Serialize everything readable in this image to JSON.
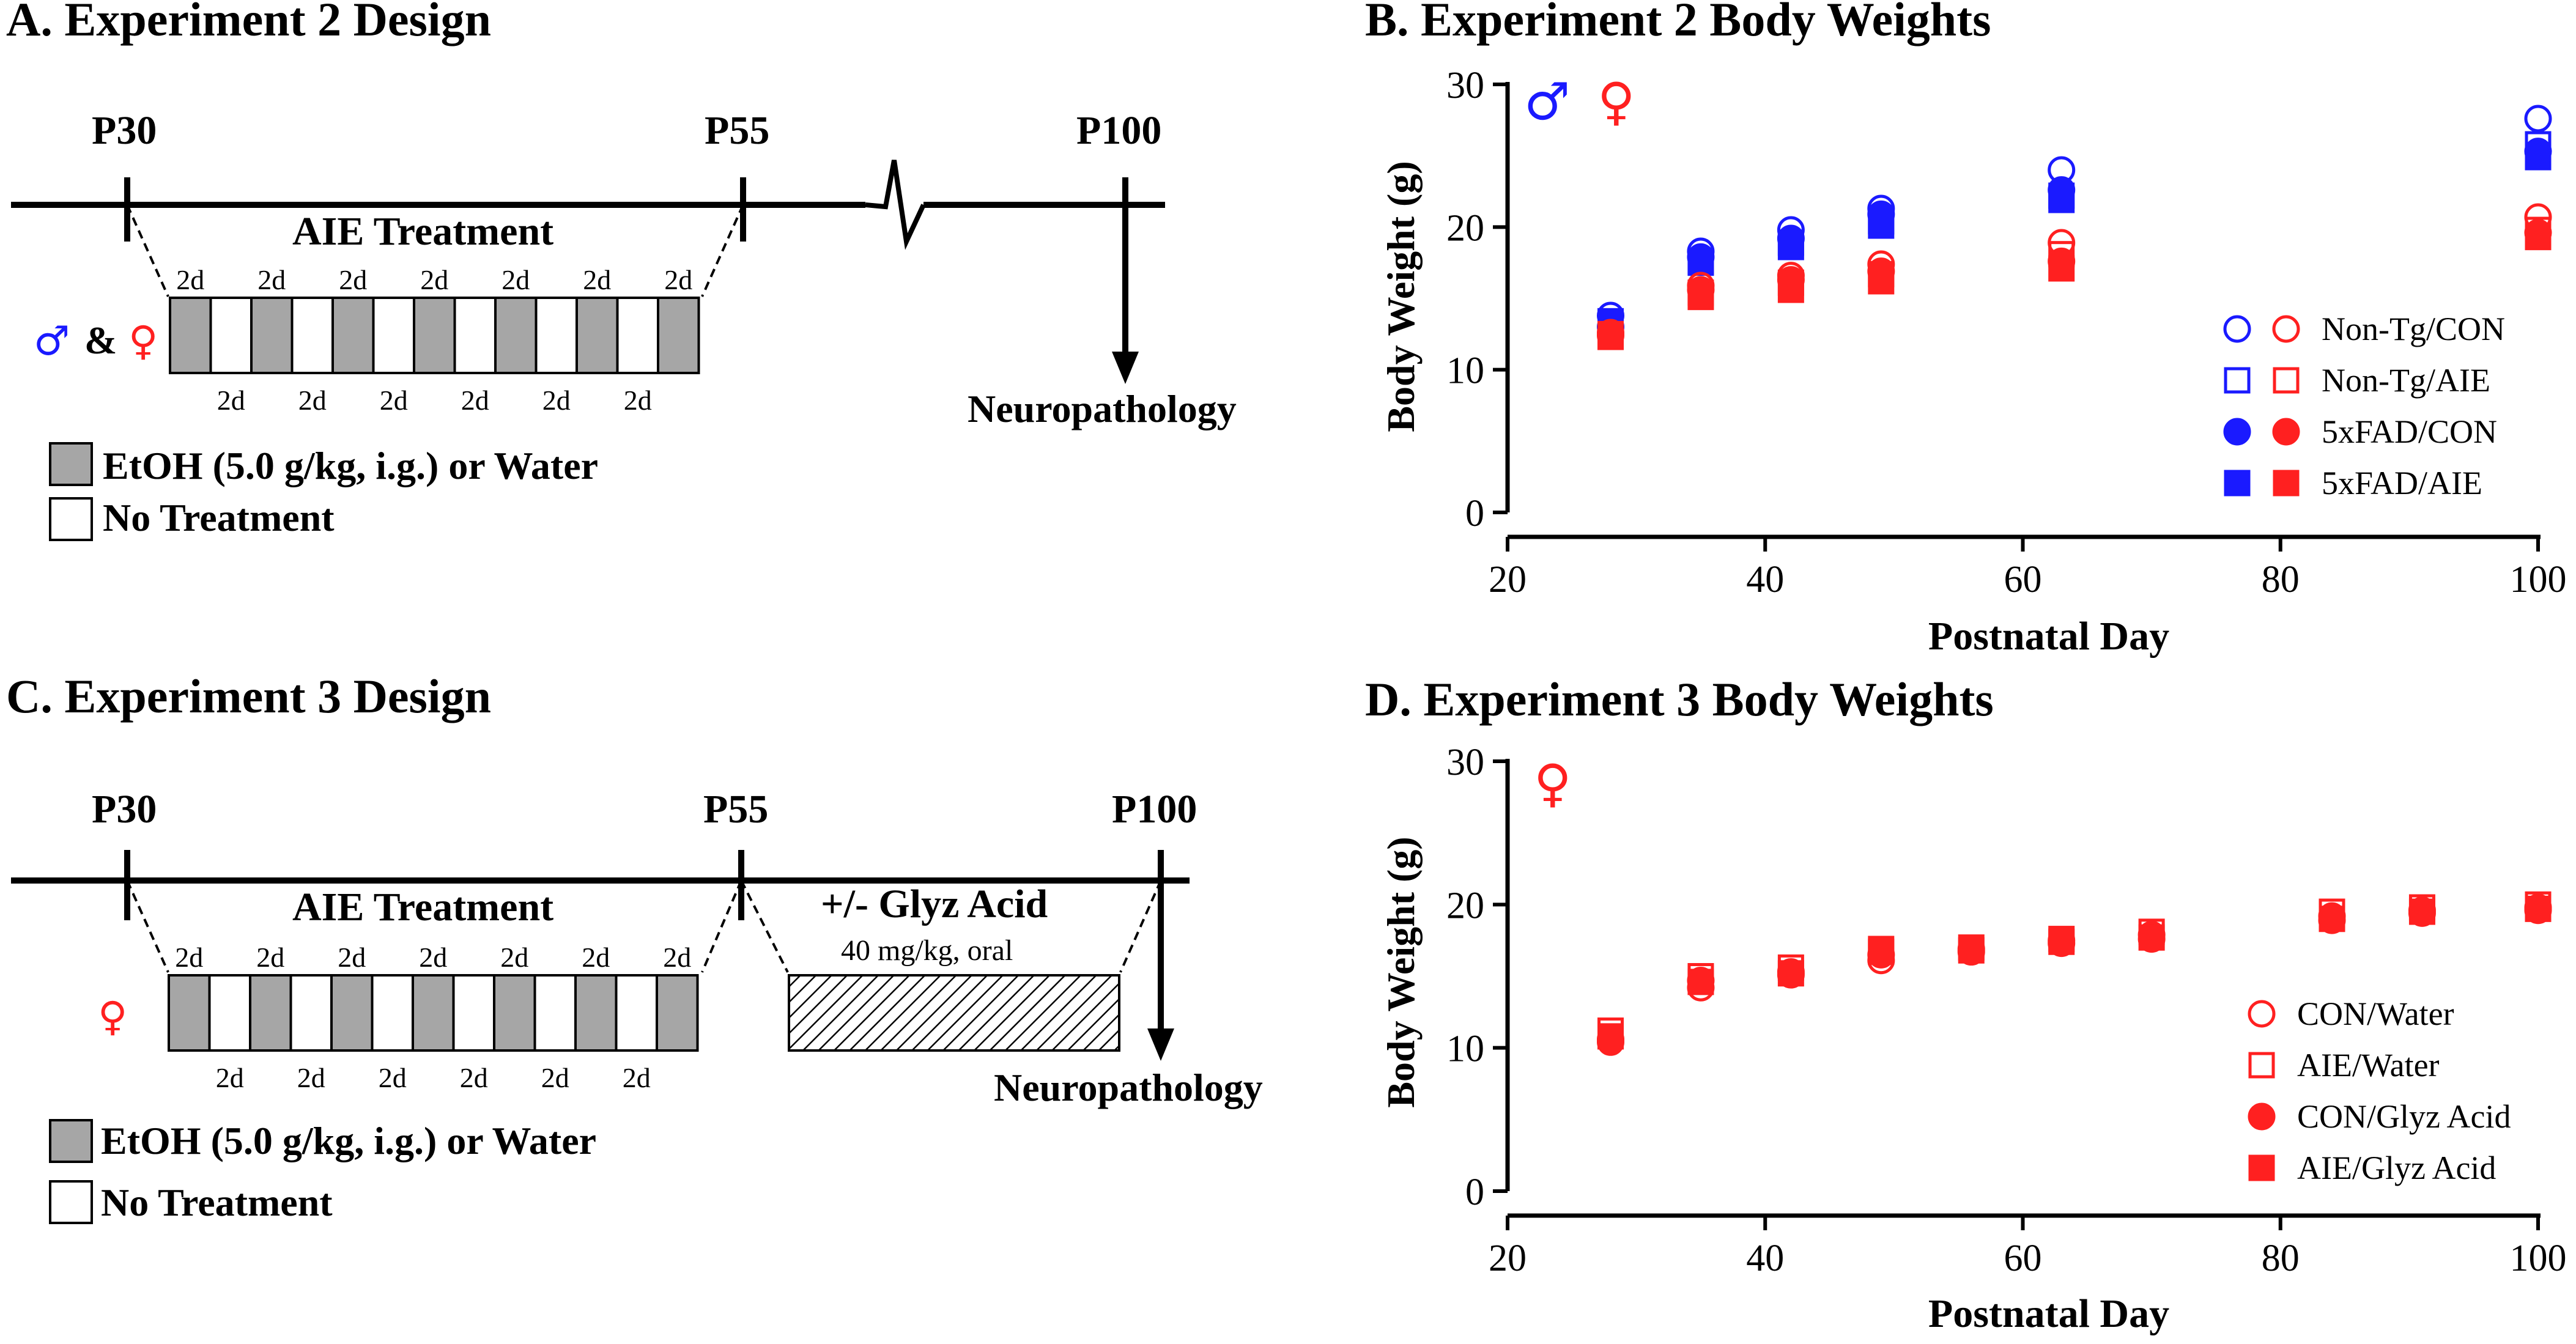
{
  "panels": {
    "a": {
      "title": "A. Experiment 2 Design",
      "timepoints": [
        "P30",
        "P55",
        "P100"
      ],
      "treatment_label": "AIE Treatment",
      "dose_label_top": "2d",
      "dose_label_bottom": "2d",
      "sex_male": "♂",
      "sex_and": "&",
      "sex_female": "♀",
      "endpoint": "Neuropathology",
      "legend_etoh": "EtOH (5.0 g/kg, i.g.) or Water",
      "legend_none": "No Treatment"
    },
    "c": {
      "title": "C. Experiment 3 Design",
      "timepoints": [
        "P30",
        "P55",
        "P100"
      ],
      "treatment_label": "AIE Treatment",
      "dose_label_top": "2d",
      "dose_label_bottom": "2d",
      "sex_female": "♀",
      "glyz_label": "+/- Glyz Acid",
      "glyz_dose": "40 mg/kg, oral",
      "endpoint": "Neuropathology",
      "legend_etoh": "EtOH (5.0 g/kg, i.g.) or Water",
      "legend_none": "No Treatment"
    }
  },
  "colors": {
    "male": "#1a1aff",
    "female": "#ff2020",
    "etoh_box": "#a6a6a6",
    "axis": "#000000"
  },
  "chart_data": [
    {
      "type": "scatter",
      "title": "B. Experiment 2 Body Weights",
      "xlabel": "Postnatal Day",
      "ylabel": "Body Weight (g)",
      "xlim": [
        20,
        100
      ],
      "ylim": [
        0,
        30
      ],
      "xticks": [
        20,
        40,
        60,
        80,
        100
      ],
      "yticks": [
        0,
        10,
        20,
        30
      ],
      "sex_symbols": [
        "♂",
        "♀"
      ],
      "legend_position": "right",
      "legend": [
        "Non-Tg/CON",
        "Non-Tg/AIE",
        "5xFAD/CON",
        "5xFAD/AIE"
      ],
      "series": [
        {
          "name": "Male Non-Tg/CON",
          "color": "male",
          "marker": "circle-open",
          "x": [
            28,
            35,
            42,
            49,
            63,
            100
          ],
          "y": [
            13.8,
            18.3,
            19.8,
            21.3,
            24.0,
            27.6
          ]
        },
        {
          "name": "Male Non-Tg/AIE",
          "color": "male",
          "marker": "square-open",
          "x": [
            28,
            35,
            42,
            49,
            63,
            100
          ],
          "y": [
            13.3,
            17.6,
            18.9,
            20.4,
            22.2,
            25.8
          ]
        },
        {
          "name": "Male 5xFAD/CON",
          "color": "male",
          "marker": "circle-filled",
          "x": [
            28,
            35,
            42,
            49,
            63,
            100
          ],
          "y": [
            13.0,
            17.9,
            19.2,
            20.9,
            22.6,
            25.3
          ]
        },
        {
          "name": "Male 5xFAD/AIE",
          "color": "male",
          "marker": "square-filled",
          "x": [
            28,
            35,
            42,
            49,
            63,
            100
          ],
          "y": [
            13.4,
            17.5,
            18.6,
            20.1,
            21.9,
            24.9
          ]
        },
        {
          "name": "Female Non-Tg/CON",
          "color": "female",
          "marker": "circle-open",
          "x": [
            28,
            35,
            42,
            49,
            63,
            100
          ],
          "y": [
            12.6,
            15.9,
            16.6,
            17.4,
            18.9,
            20.7
          ]
        },
        {
          "name": "Female Non-Tg/AIE",
          "color": "female",
          "marker": "square-open",
          "x": [
            28,
            35,
            42,
            49,
            63,
            100
          ],
          "y": [
            12.3,
            15.4,
            16.1,
            16.7,
            18.1,
            19.8
          ]
        },
        {
          "name": "Female 5xFAD/CON",
          "color": "female",
          "marker": "circle-filled",
          "x": [
            28,
            35,
            42,
            49,
            63,
            100
          ],
          "y": [
            12.4,
            15.6,
            16.3,
            16.9,
            17.6,
            19.6
          ]
        },
        {
          "name": "Female 5xFAD/AIE",
          "color": "female",
          "marker": "square-filled",
          "x": [
            28,
            35,
            42,
            49,
            63,
            100
          ],
          "y": [
            12.5,
            15.1,
            15.6,
            16.2,
            17.1,
            19.3
          ]
        }
      ]
    },
    {
      "type": "scatter",
      "title": "D. Experiment 3 Body Weights",
      "xlabel": "Postnatal Day",
      "ylabel": "Body Weight (g)",
      "xlim": [
        20,
        100
      ],
      "ylim": [
        0,
        30
      ],
      "xticks": [
        20,
        40,
        60,
        80,
        100
      ],
      "yticks": [
        0,
        10,
        20,
        30
      ],
      "sex_symbols": [
        "♀"
      ],
      "legend_position": "right",
      "legend": [
        "CON/Water",
        "AIE/Water",
        "CON/Glyz Acid",
        "AIE/Glyz Acid"
      ],
      "series": [
        {
          "name": "CON/Water",
          "color": "female",
          "marker": "circle-open",
          "x": [
            28,
            35,
            42,
            49,
            56,
            63,
            70,
            84,
            91,
            100
          ],
          "y": [
            10.4,
            14.2,
            15.1,
            16.1,
            16.7,
            17.3,
            17.6,
            18.9,
            19.4,
            19.6
          ]
        },
        {
          "name": "AIE/Water",
          "color": "female",
          "marker": "square-open",
          "x": [
            28,
            35,
            42,
            49,
            56,
            63,
            70,
            84,
            91,
            100
          ],
          "y": [
            11.2,
            15.0,
            15.6,
            16.7,
            17.0,
            17.6,
            18.1,
            19.5,
            19.8,
            20.0
          ]
        },
        {
          "name": "CON/Glyz Acid",
          "color": "female",
          "marker": "circle-filled",
          "x": [
            28,
            35,
            42,
            49,
            56,
            63,
            70,
            84,
            91,
            100
          ],
          "y": [
            10.6,
            14.7,
            15.3,
            16.5,
            16.9,
            17.5,
            17.9,
            19.2,
            19.6,
            19.8
          ]
        },
        {
          "name": "AIE/Glyz Acid",
          "color": "female",
          "marker": "square-filled",
          "x": [
            28,
            35,
            42,
            49,
            56,
            63,
            70,
            84,
            91,
            100
          ],
          "y": [
            10.8,
            14.6,
            15.2,
            16.9,
            16.8,
            17.4,
            17.7,
            19.0,
            19.5,
            19.7
          ]
        }
      ]
    }
  ]
}
